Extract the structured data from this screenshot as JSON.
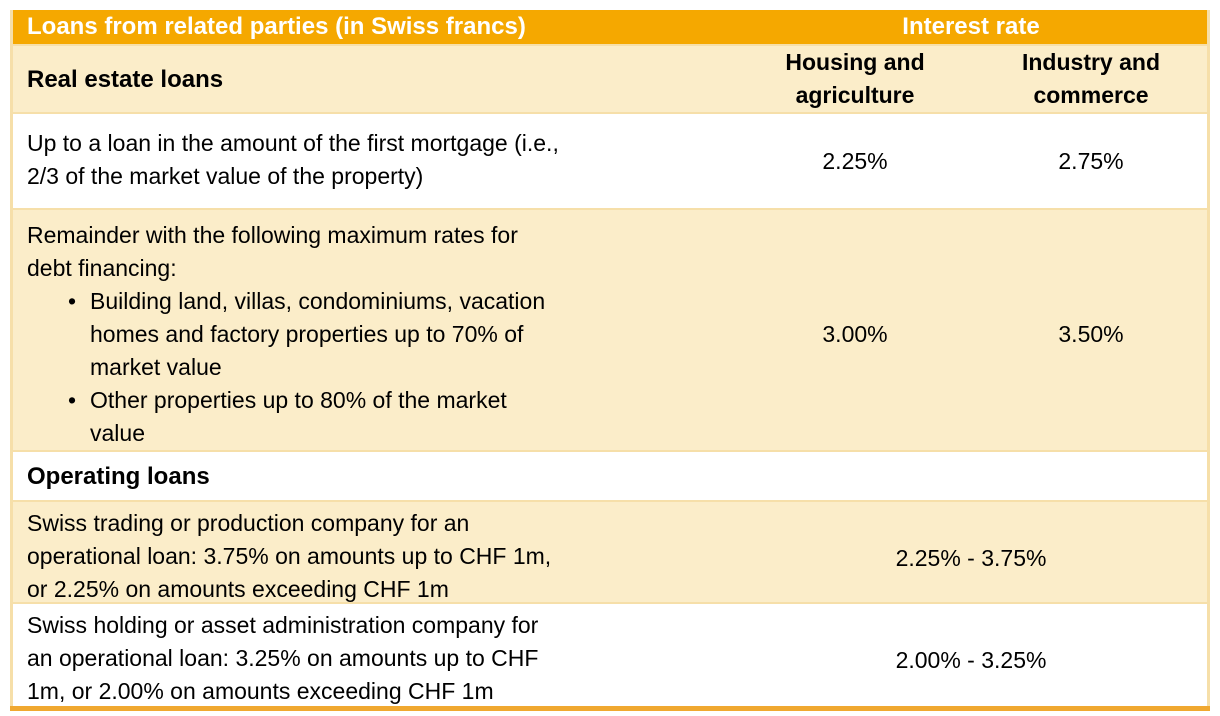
{
  "colors": {
    "header_orange": "#F5A800",
    "row_cream": "#FBEDC9",
    "border_tan": "#F6DFA9",
    "bottom_bar_orange": "#F0A830",
    "header_text": "#FFFFFF",
    "body_text": "#000000"
  },
  "table": {
    "title": "Loans from related parties (in Swiss francs)",
    "interest_rate_header": "Interest rate",
    "rate_columns": {
      "housing": "Housing and\nagriculture",
      "industry": "Industry and\ncommerce"
    },
    "sections": {
      "real_estate": {
        "label": "Real estate loans",
        "rows": {
          "first_mortgage": {
            "text": "Up to a loan in the amount of the first mortgage (i.e.,\n2/3 of the market value of the property)",
            "housing_rate": "2.25%",
            "industry_rate": "2.75%"
          },
          "remainder": {
            "intro": "Remainder with the following maximum rates for\ndebt financing:",
            "bullets": [
              "Building land, villas, condominiums, vacation\nhomes and factory properties up to 70% of\nmarket value",
              "Other properties up to 80% of the market\nvalue"
            ],
            "housing_rate": "3.00%",
            "industry_rate": "3.50%"
          }
        }
      },
      "operating": {
        "label": "Operating loans",
        "rows": {
          "trading": {
            "text": "Swiss trading or production company for an\noperational loan: 3.75% on amounts up to CHF 1m,\nor 2.25% on amounts exceeding CHF 1m",
            "rate_range": "2.25% - 3.75%"
          },
          "holding": {
            "text": "Swiss holding or asset administration company for\nan operational loan: 3.25% on amounts up to CHF\n1m, or 2.00% on amounts exceeding CHF 1m",
            "rate_range": "2.00% - 3.25%"
          }
        }
      }
    }
  }
}
